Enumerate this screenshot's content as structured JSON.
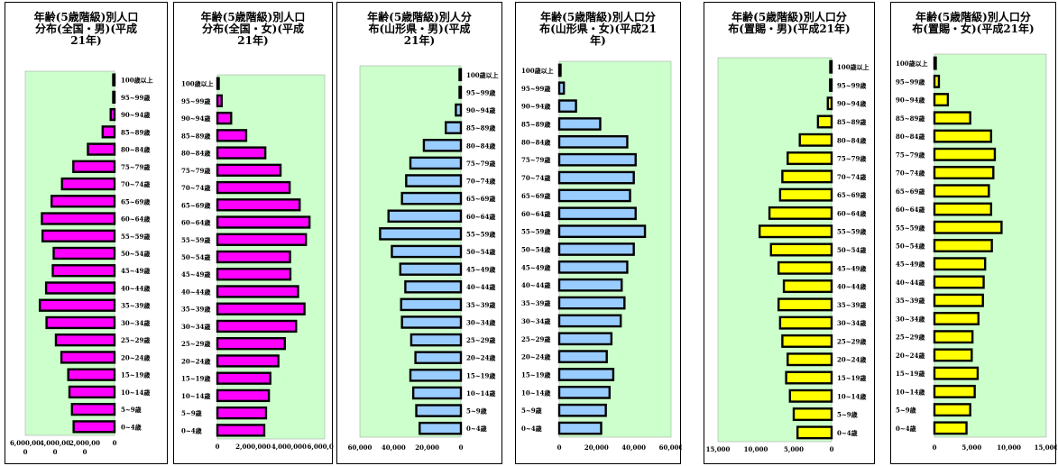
{
  "age_groups": [
    "0~4歳",
    "5~9歳",
    "10~14歳",
    "15~19歳",
    "20~24歳",
    "25~29歳",
    "30~34歳",
    "35~39歳",
    "40~44歳",
    "45~49歳",
    "50~54歳",
    "55~59歳",
    "60~64歳",
    "65~69歳",
    "70~74歳",
    "75~79歳",
    "80~84歳",
    "85~89歳",
    "90~94歳",
    "95~99歳",
    "100歳以上"
  ],
  "colors": {
    "magenta": "#ff00ff",
    "blue": "#99ccff",
    "yellow": "#ffff00",
    "plot_bg": "#ccffcc",
    "bar_outline": "#000000"
  },
  "chart_data": [
    {
      "type": "bar",
      "orientation": "horizontal",
      "direction": "right-to-left",
      "title_lines": [
        "年齢(5歳階級)別人口",
        "分布(全国・男)(平成",
        "21年)"
      ],
      "categories": [
        "0~4歳",
        "5~9歳",
        "10~14歳",
        "15~19歳",
        "20~24歳",
        "25~29歳",
        "30~34歳",
        "35~39歳",
        "40~44歳",
        "45~49歳",
        "50~54歳",
        "55~59歳",
        "60~64歳",
        "65~69歳",
        "70~74歳",
        "75~79歳",
        "80~84歳",
        "85~89歳",
        "90~94歳",
        "95~99歳",
        "100歳以上"
      ],
      "values": [
        2750000,
        2860000,
        3030000,
        3110000,
        3570000,
        3940000,
        4570000,
        5020000,
        4600000,
        4150000,
        4090000,
        4840000,
        4880000,
        4230000,
        3530000,
        2770000,
        1790000,
        800000,
        260000,
        60000,
        6000
      ],
      "xlim": [
        0,
        6000000
      ],
      "tick_values": [
        6000000,
        4000000,
        2000000,
        0
      ],
      "tick_labels": [
        [
          "6,000,00",
          "0"
        ],
        [
          "4,000,00",
          "0"
        ],
        [
          "2,000,00",
          "0"
        ],
        [
          "0"
        ]
      ],
      "color": "#ff00ff"
    },
    {
      "type": "bar",
      "orientation": "horizontal",
      "direction": "left-to-right",
      "title_lines": [
        "年齢(5歳階級)別人口",
        "分布(全国・女)(平成",
        "21年)"
      ],
      "categories": [
        "0~4歳",
        "5~9歳",
        "10~14歳",
        "15~19歳",
        "20~24歳",
        "25~29歳",
        "30~34歳",
        "35~39歳",
        "40~44歳",
        "45~49歳",
        "50~54歳",
        "55~59歳",
        "60~64歳",
        "65~69歳",
        "70~74歳",
        "75~79歳",
        "80~84歳",
        "85~89歳",
        "90~94歳",
        "95~99歳",
        "100歳以上"
      ],
      "values": [
        2620000,
        2720000,
        2880000,
        2960000,
        3410000,
        3770000,
        4400000,
        4870000,
        4510000,
        4080000,
        4060000,
        4950000,
        5150000,
        4600000,
        4040000,
        3530000,
        2680000,
        1610000,
        770000,
        240000,
        40000
      ],
      "xlim": [
        0,
        6000000
      ],
      "tick_values": [
        0,
        2000000,
        4000000,
        6000000
      ],
      "tick_labels": [
        [
          "0"
        ],
        [
          "2,000,000"
        ],
        [
          "4,000,000"
        ],
        [
          "6,000,000"
        ]
      ],
      "color": "#ff00ff"
    },
    {
      "type": "bar",
      "orientation": "horizontal",
      "direction": "right-to-left",
      "title_lines": [
        "年齢(5歳階級)別人分",
        "布(山形県・男)(平成",
        "21年)"
      ],
      "categories": [
        "0~4歳",
        "5~9歳",
        "10~14歳",
        "15~19歳",
        "20~24歳",
        "25~29歳",
        "30~34歳",
        "35~39歳",
        "40~44歳",
        "45~49歳",
        "50~54歳",
        "55~59歳",
        "60~64歳",
        "65~69歳",
        "70~74歳",
        "75~79歳",
        "80~84歳",
        "85~89歳",
        "90~94歳",
        "95~99歳",
        "100歳以上"
      ],
      "values": [
        24500,
        26500,
        28300,
        30000,
        27000,
        29500,
        35000,
        35500,
        33000,
        36000,
        41000,
        48000,
        43000,
        35000,
        32500,
        30000,
        22000,
        9000,
        3000,
        500,
        50
      ],
      "xlim": [
        0,
        60000
      ],
      "tick_values": [
        60000,
        40000,
        20000,
        0
      ],
      "tick_labels": [
        [
          "60,000"
        ],
        [
          "40,000"
        ],
        [
          "20,000"
        ],
        [
          "0"
        ]
      ],
      "color": "#99ccff"
    },
    {
      "type": "bar",
      "orientation": "horizontal",
      "direction": "left-to-right",
      "title_lines": [
        "年齢(5歳階級)別人口分",
        "布(山形県・女)(平成21",
        "年)"
      ],
      "categories": [
        "0~4歳",
        "5~9歳",
        "10~14歳",
        "15~19歳",
        "20~24歳",
        "25~29歳",
        "30~34歳",
        "35~39歳",
        "40~44歳",
        "45~49歳",
        "50~54歳",
        "55~59歳",
        "60~64歳",
        "65~69歳",
        "70~74歳",
        "75~79歳",
        "80~84歳",
        "85~89歳",
        "90~94歳",
        "95~99歳",
        "100歳以上"
      ],
      "values": [
        22500,
        25000,
        27000,
        29000,
        25500,
        28000,
        33000,
        35000,
        33500,
        36500,
        40000,
        46000,
        41000,
        38000,
        40000,
        41000,
        36500,
        22000,
        9000,
        2500,
        500
      ],
      "xlim": [
        0,
        60000
      ],
      "tick_values": [
        0,
        20000,
        40000,
        60000
      ],
      "tick_labels": [
        [
          "0"
        ],
        [
          "20,000"
        ],
        [
          "40,000"
        ],
        [
          "60,000"
        ]
      ],
      "color": "#99ccff"
    },
    {
      "type": "bar",
      "orientation": "horizontal",
      "direction": "right-to-left",
      "title_lines": [
        "年齢(5歳階級)別人口分",
        "布(置賜・男)(平成21年)"
      ],
      "categories": [
        "0~4歳",
        "5~9歳",
        "10~14歳",
        "15~19歳",
        "20~24歳",
        "25~29歳",
        "30~34歳",
        "35~39歳",
        "40~44歳",
        "45~49歳",
        "50~54歳",
        "55~59歳",
        "60~64歳",
        "65~69歳",
        "70~74歳",
        "75~79歳",
        "80~84歳",
        "85~89歳",
        "90~94歳",
        "95~99歳",
        "100歳以上"
      ],
      "values": [
        4500,
        5000,
        5500,
        6000,
        5800,
        6500,
        6800,
        7000,
        6300,
        7000,
        8000,
        9500,
        8200,
        6800,
        6500,
        5800,
        4200,
        1800,
        500,
        200,
        50
      ],
      "xlim": [
        0,
        15000
      ],
      "tick_values": [
        15000,
        10000,
        5000,
        0
      ],
      "tick_labels": [
        [
          "15,000"
        ],
        [
          "10,000"
        ],
        [
          "5,000"
        ],
        [
          "0"
        ]
      ],
      "color": "#ffff00"
    },
    {
      "type": "bar",
      "orientation": "horizontal",
      "direction": "left-to-right",
      "title_lines": [
        "年齢(5歳階級)別人口分",
        "布(置賜・女)(平成21年)"
      ],
      "categories": [
        "0~4歳",
        "5~9歳",
        "10~14歳",
        "15~19歳",
        "20~24歳",
        "25~29歳",
        "30~34歳",
        "35~39歳",
        "40~44歳",
        "45~49歳",
        "50~54歳",
        "55~59歳",
        "60~64歳",
        "65~69歳",
        "70~74歳",
        "75~79歳",
        "80~84歳",
        "85~89歳",
        "90~94歳",
        "95~99歳",
        "100歳以上"
      ],
      "values": [
        4300,
        4800,
        5400,
        5800,
        5000,
        5100,
        5900,
        6500,
        6600,
        6800,
        7700,
        9000,
        7600,
        7300,
        7900,
        8100,
        7600,
        4800,
        1800,
        600,
        100
      ],
      "xlim": [
        0,
        15000
      ],
      "tick_values": [
        0,
        5000,
        10000,
        15000
      ],
      "tick_labels": [
        [
          "0"
        ],
        [
          "5,000"
        ],
        [
          "10,000"
        ],
        [
          "15,000"
        ]
      ],
      "color": "#ffff00"
    }
  ]
}
